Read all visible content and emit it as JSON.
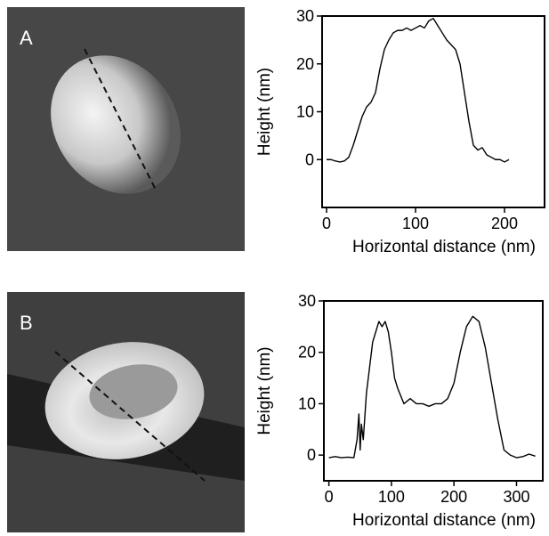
{
  "chart_data": [
    {
      "type": "line",
      "panel_label": "A",
      "y_label": "Height (nm)",
      "x_label": "Horizontal distance (nm)",
      "color": "#000000",
      "x": [
        0,
        5,
        10,
        15,
        20,
        25,
        30,
        35,
        40,
        45,
        50,
        55,
        60,
        65,
        70,
        75,
        80,
        85,
        90,
        95,
        100,
        105,
        110,
        115,
        120,
        125,
        130,
        135,
        140,
        145,
        150,
        155,
        160,
        165,
        170,
        175,
        180,
        185,
        190,
        195,
        200,
        205
      ],
      "values": [
        0,
        0,
        -0.3,
        -0.5,
        -0.3,
        0.5,
        3,
        6,
        9,
        11,
        12,
        14,
        19,
        23,
        25,
        26.5,
        27,
        27,
        27.5,
        27,
        27.5,
        28,
        27.5,
        29,
        29.5,
        28,
        26.5,
        25,
        24,
        23,
        20,
        14,
        8,
        3,
        2,
        2.5,
        1,
        0.5,
        0,
        0,
        -0.5,
        0
      ],
      "xlim": [
        -5,
        245
      ],
      "ylim": [
        -10,
        30
      ],
      "xticks": [
        0,
        100,
        200
      ],
      "yticks": [
        0,
        10,
        20,
        30
      ]
    },
    {
      "type": "line",
      "panel_label": "B",
      "y_label": "Height (nm)",
      "x_label": "Horizontal distance (nm)",
      "color": "#000000",
      "x": [
        0,
        10,
        20,
        30,
        40,
        45,
        48,
        50,
        52,
        55,
        60,
        65,
        70,
        75,
        80,
        85,
        90,
        95,
        100,
        105,
        110,
        120,
        130,
        140,
        150,
        160,
        170,
        180,
        190,
        200,
        210,
        220,
        230,
        240,
        250,
        260,
        270,
        280,
        290,
        300,
        310,
        320,
        330
      ],
      "values": [
        -0.5,
        -0.3,
        -0.5,
        -0.4,
        -0.5,
        3,
        8,
        1,
        6,
        3,
        12,
        17,
        22,
        24,
        26,
        25,
        26,
        24,
        20,
        15,
        13,
        10,
        11,
        10,
        10,
        9.5,
        10,
        10,
        11,
        14,
        20,
        25,
        27,
        26,
        21,
        14,
        7,
        1,
        0,
        -0.5,
        -0.3,
        0.2,
        -0.2
      ],
      "xlim": [
        -8,
        342
      ],
      "ylim": [
        -5,
        30
      ],
      "xticks": [
        0,
        100,
        200,
        300
      ],
      "yticks": [
        0,
        10,
        20,
        30
      ]
    }
  ]
}
